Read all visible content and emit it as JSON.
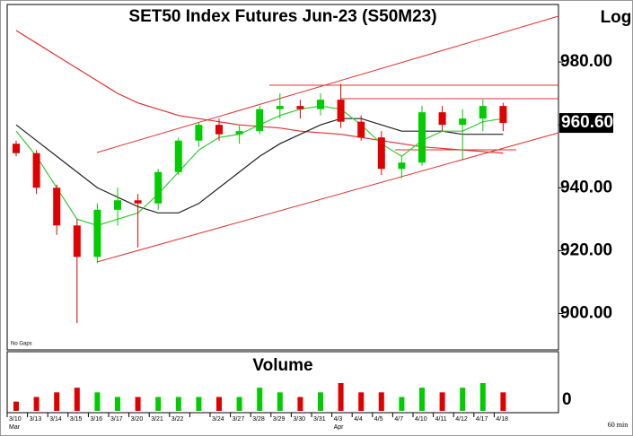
{
  "chart_data": {
    "type": "candlestick",
    "title": "SET50 Index Futures Jun-23 (S50M23)",
    "scale_label": "Log",
    "volume_title": "Volume",
    "note": "No Gaps",
    "interval": "60 min",
    "months": [
      {
        "label": "Mar",
        "at": 0
      },
      {
        "label": "Apr",
        "at": 16
      }
    ],
    "categories": [
      "3/10",
      "3/13",
      "3/14",
      "3/15",
      "3/16",
      "3/17",
      "3/20",
      "3/21",
      "3/22",
      null,
      "3/24",
      "3/27",
      "3/28",
      "3/29",
      "3/30",
      "3/31",
      "4/3",
      "4/4",
      "4/5",
      "4/7",
      "4/10",
      "4/11",
      "4/12",
      "4/17",
      "4/18"
    ],
    "open": [
      954,
      951,
      940,
      928,
      918,
      933,
      936,
      935,
      945,
      955,
      960,
      957,
      958,
      965,
      966,
      965,
      968,
      961,
      956,
      946,
      948,
      964,
      960,
      962,
      966
    ],
    "high": [
      955,
      952,
      941,
      930,
      935,
      940,
      938,
      946,
      956,
      961,
      962,
      960,
      966,
      970,
      968,
      970,
      973,
      963,
      958,
      950,
      966,
      966,
      965,
      968,
      967
    ],
    "low": [
      950,
      938,
      925,
      897,
      916,
      928,
      921,
      933,
      944,
      953,
      955,
      954,
      957,
      962,
      962,
      963,
      959,
      955,
      944,
      943,
      947,
      958,
      949,
      958,
      958
    ],
    "close": [
      951,
      940,
      928,
      918,
      933,
      936,
      935,
      945,
      955,
      960,
      957,
      958,
      965,
      966,
      965,
      968,
      961,
      956,
      946,
      948,
      964,
      960,
      962,
      966,
      960.6
    ],
    "last_label": "960.60",
    "up_color": "#00cc00",
    "down_color": "#e00000",
    "series": [
      {
        "name": "MA long",
        "color": "#e03030",
        "values": [
          990,
          986,
          982,
          978,
          974,
          970,
          967,
          965,
          963,
          962,
          961,
          960,
          959.5,
          959,
          958,
          957.5,
          957,
          956,
          955,
          954,
          953,
          952.5,
          952,
          951.5,
          951
        ]
      },
      {
        "name": "MA mid",
        "color": "#202020",
        "values": [
          960,
          955,
          950,
          945,
          940,
          937,
          934,
          932,
          932,
          935,
          940,
          945,
          950,
          954,
          957,
          960,
          962,
          962,
          960,
          958,
          958,
          958,
          957,
          957,
          957
        ]
      },
      {
        "name": "MA short",
        "color": "#33cc33",
        "values": [
          958,
          950,
          940,
          930,
          928,
          930,
          932,
          938,
          945,
          952,
          956,
          957,
          960,
          963,
          965,
          966,
          965,
          960,
          954,
          950,
          955,
          958,
          958,
          961,
          962
        ]
      }
    ],
    "ylim": [
      889,
      998
    ],
    "yticks": [
      {
        "value": 900,
        "label": "900.00"
      },
      {
        "value": 920,
        "label": "920.00"
      },
      {
        "value": 940,
        "label": "940.00"
      },
      {
        "value": 960,
        "label": "960.00"
      },
      {
        "value": 980,
        "label": "980.00"
      }
    ],
    "volume": [
      2,
      3,
      4,
      5,
      4,
      3,
      3,
      3,
      3,
      3,
      3,
      3,
      5,
      4,
      3,
      4,
      6,
      4,
      4,
      3,
      5,
      4,
      5,
      6,
      4
    ],
    "volume_ylim": [
      0,
      12
    ],
    "volume_yticks": [
      0
    ]
  }
}
